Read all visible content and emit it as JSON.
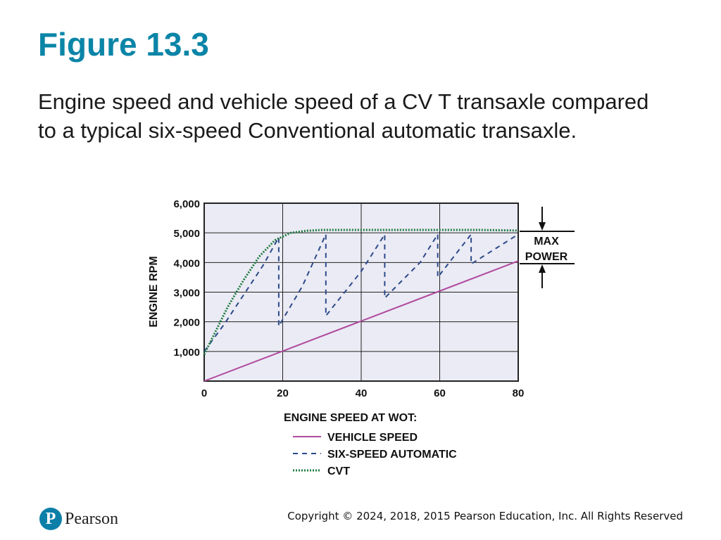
{
  "slide": {
    "title": "Figure 13.3",
    "caption": "Engine speed and vehicle speed of a CV T transaxle compared to a typical six-speed Conventional automatic transaxle."
  },
  "chart_data": {
    "type": "line",
    "xlabel": "",
    "ylabel": "ENGINE RPM",
    "xlim": [
      0,
      80
    ],
    "ylim": [
      0,
      6000
    ],
    "x_ticks": [
      "0",
      "20",
      "40",
      "60",
      "80"
    ],
    "y_ticks": [
      "1,000",
      "2,000",
      "3,000",
      "4,000",
      "5,000",
      "6,000"
    ],
    "grid": true,
    "legend_title": "ENGINE SPEED AT WOT:",
    "legend_position": "bottom",
    "annotation": {
      "line1": "MAX",
      "line2": "POWER",
      "range": [
        4000,
        5000
      ]
    },
    "series": [
      {
        "name": "VEHICLE SPEED",
        "style": "solid",
        "color": "#b04a9e",
        "x": [
          0,
          80
        ],
        "y": [
          0,
          4050
        ]
      },
      {
        "name": "SIX-SPEED AUTOMATIC",
        "style": "dashed",
        "color": "#2c4a8a",
        "x": [
          0,
          5,
          10,
          15,
          19,
          19,
          25,
          31,
          31,
          40,
          46,
          46,
          55,
          59.5,
          59.5,
          68,
          68,
          80
        ],
        "y": [
          1000,
          1900,
          2900,
          3900,
          4850,
          1850,
          3200,
          4950,
          2200,
          3700,
          4950,
          2800,
          4000,
          4950,
          3500,
          4950,
          3950,
          4950
        ]
      },
      {
        "name": "CVT",
        "style": "dotted",
        "color": "#1e7a3e",
        "x": [
          0,
          3,
          6,
          10,
          14,
          18,
          22,
          26,
          30,
          40,
          50,
          60,
          70,
          80
        ],
        "y": [
          900,
          1700,
          2500,
          3400,
          4200,
          4750,
          5000,
          5070,
          5100,
          5100,
          5100,
          5100,
          5100,
          5080
        ]
      }
    ]
  },
  "footer": {
    "logo_letter": "P",
    "logo_text": "Pearson",
    "copyright": "Copyright © 2024, 2018, 2015 Pearson Education, Inc. All Rights Reserved"
  },
  "colors": {
    "title": "#0b85a7",
    "plot_bg": "#ebebf5",
    "grid": "#222222"
  }
}
